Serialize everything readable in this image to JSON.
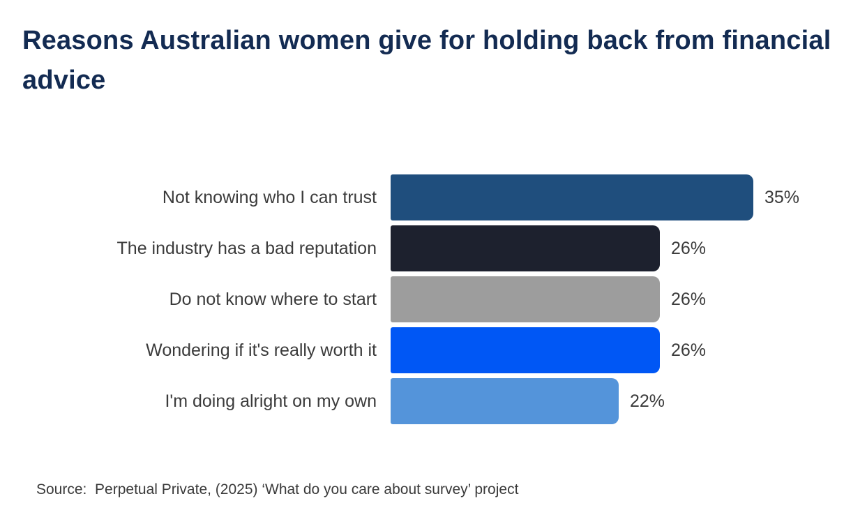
{
  "title": "Reasons Australian women give for holding back from financial advice",
  "source": "Source:  Perpetual Private, (2025) ‘What do you care about survey’ project",
  "colors": {
    "title_text": "#132b52",
    "label_text": "#3b3b3b",
    "background": "#ffffff"
  },
  "chart_data": {
    "type": "bar",
    "orientation": "horizontal",
    "title": "Reasons Australian women give for holding back from financial advice",
    "categories": [
      "Not knowing who I can trust",
      "The industry has a bad reputation",
      "Do not know where to start",
      "Wondering if it's really worth it",
      "I'm doing alright on my own"
    ],
    "values": [
      35,
      26,
      26,
      26,
      22
    ],
    "value_labels": [
      "35%",
      "26%",
      "26%",
      "26%",
      "22%"
    ],
    "bar_colors": [
      "#1f4e7d",
      "#1d212e",
      "#9d9d9d",
      "#0057f5",
      "#5494da"
    ],
    "xlabel": "",
    "ylabel": "",
    "xlim": [
      0,
      35
    ],
    "grid": false,
    "legend": false,
    "source": "Source:  Perpetual Private, (2025) ‘What do you care about survey’ project"
  }
}
